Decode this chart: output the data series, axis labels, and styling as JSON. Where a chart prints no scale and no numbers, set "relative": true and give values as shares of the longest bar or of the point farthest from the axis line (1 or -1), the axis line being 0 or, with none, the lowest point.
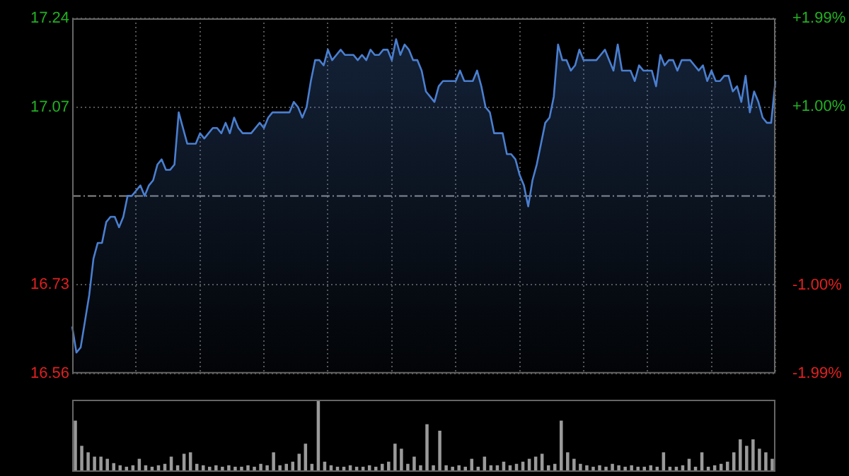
{
  "chart_data": [
    {
      "type": "area",
      "categories": [
        null,
        null,
        null,
        null,
        null,
        null,
        null,
        null,
        null,
        null,
        null,
        null,
        null,
        null,
        null,
        null,
        null,
        null,
        null,
        null,
        null,
        null,
        null,
        null,
        null,
        null,
        null,
        null,
        null,
        null,
        null,
        null,
        null,
        null,
        null,
        null,
        null,
        null,
        null,
        null,
        null,
        null,
        null,
        null,
        null,
        null,
        null,
        null,
        null,
        null,
        null,
        null,
        null,
        null,
        null,
        null,
        null,
        null,
        null,
        null,
        null,
        null,
        null,
        null,
        null,
        null,
        null,
        null,
        null,
        null,
        null,
        null,
        null,
        null,
        null,
        null,
        null,
        null,
        null,
        null,
        null,
        null,
        null,
        null,
        null,
        null,
        null,
        null,
        null,
        null,
        null,
        null,
        null,
        null,
        null,
        null,
        null,
        null,
        null,
        null,
        null,
        null,
        null,
        null,
        null,
        null,
        null,
        null,
        null,
        null,
        null,
        null,
        null,
        null,
        null,
        null,
        null,
        null,
        null,
        null,
        null,
        null,
        null,
        null,
        null,
        null,
        null,
        null,
        null,
        null,
        null,
        null,
        null,
        null,
        null,
        null,
        null,
        null,
        null,
        null,
        null,
        null,
        null,
        null,
        null,
        null,
        null,
        null,
        null,
        null,
        null,
        null,
        null,
        null,
        null,
        null,
        null,
        null,
        null,
        null,
        null,
        null,
        null,
        null,
        null,
        null
      ],
      "ylim": [
        16.56,
        17.24
      ],
      "yticks": [
        16.56,
        16.73,
        17.07,
        17.24
      ],
      "y2lim": [
        -1.99,
        1.99
      ],
      "y2ticks": [
        {
          "value": -1.99,
          "label": "-1.99%"
        },
        {
          "value": -1.0,
          "label": "-1.00%"
        },
        {
          "value": 1.0,
          "label": "+1.00%"
        },
        {
          "value": 1.99,
          "label": "+1.99%"
        }
      ],
      "grid": true,
      "legend": false,
      "marker": "none",
      "ref_lines": [
        {
          "axis": "y",
          "value": 16.9,
          "color": "#8a8a8a",
          "line_style": "dashed"
        }
      ],
      "series": [
        {
          "color": "#4a7fd0",
          "values": [
            16.65,
            16.6,
            16.61,
            16.66,
            16.71,
            16.78,
            16.81,
            16.81,
            16.85,
            16.86,
            16.86,
            16.84,
            16.86,
            16.9,
            16.9,
            16.91,
            16.92,
            16.9,
            16.92,
            16.93,
            16.96,
            16.97,
            16.95,
            16.95,
            16.96,
            17.06,
            17.03,
            17.0,
            17.0,
            17.0,
            17.02,
            17.01,
            17.02,
            17.03,
            17.03,
            17.02,
            17.04,
            17.02,
            17.05,
            17.03,
            17.02,
            17.02,
            17.02,
            17.03,
            17.04,
            17.03,
            17.05,
            17.06,
            17.06,
            17.06,
            17.06,
            17.06,
            17.08,
            17.07,
            17.05,
            17.07,
            17.12,
            17.16,
            17.16,
            17.15,
            17.18,
            17.16,
            17.17,
            17.18,
            17.17,
            17.17,
            17.17,
            17.16,
            17.17,
            17.16,
            17.18,
            17.17,
            17.17,
            17.18,
            17.18,
            17.16,
            17.2,
            17.17,
            17.19,
            17.18,
            17.16,
            17.16,
            17.14,
            17.1,
            17.09,
            17.08,
            17.11,
            17.12,
            17.12,
            17.12,
            17.12,
            17.14,
            17.12,
            17.12,
            17.12,
            17.14,
            17.11,
            17.07,
            17.06,
            17.02,
            17.02,
            17.02,
            16.98,
            16.98,
            16.97,
            16.94,
            16.92,
            16.88,
            16.93,
            16.96,
            17.0,
            17.04,
            17.05,
            17.09,
            17.19,
            17.16,
            17.16,
            17.14,
            17.15,
            17.18,
            17.16,
            17.16,
            17.16,
            17.16,
            17.17,
            17.18,
            17.16,
            17.14,
            17.19,
            17.14,
            17.14,
            17.14,
            17.12,
            17.15,
            17.14,
            17.14,
            17.14,
            17.11,
            17.17,
            17.15,
            17.16,
            17.16,
            17.14,
            17.16,
            17.16,
            17.16,
            17.15,
            17.14,
            17.15,
            17.12,
            17.14,
            17.12,
            17.12,
            17.13,
            17.13,
            17.1,
            17.11,
            17.08,
            17.13,
            17.06,
            17.1,
            17.08,
            17.05,
            17.04,
            17.04,
            17.12
          ]
        }
      ]
    },
    {
      "type": "bar",
      "relative": true,
      "legend": false,
      "categories": [
        null,
        null,
        null,
        null,
        null,
        null,
        null,
        null,
        null,
        null,
        null,
        null,
        null,
        null,
        null,
        null,
        null,
        null,
        null,
        null,
        null,
        null,
        null,
        null,
        null,
        null,
        null,
        null,
        null,
        null,
        null,
        null,
        null,
        null,
        null,
        null,
        null,
        null,
        null,
        null,
        null,
        null,
        null,
        null,
        null,
        null,
        null,
        null,
        null,
        null,
        null,
        null,
        null,
        null,
        null,
        null,
        null,
        null,
        null,
        null,
        null,
        null,
        null,
        null,
        null,
        null,
        null,
        null,
        null,
        null,
        null,
        null,
        null,
        null,
        null,
        null,
        null,
        null,
        null,
        null,
        null,
        null,
        null,
        null,
        null,
        null,
        null,
        null,
        null,
        null,
        null,
        null,
        null,
        null,
        null,
        null,
        null,
        null,
        null,
        null,
        null,
        null,
        null,
        null,
        null,
        null,
        null,
        null,
        null,
        null
      ],
      "color": "#9a9a9a",
      "values": [
        0.71,
        0.36,
        0.27,
        0.21,
        0.21,
        0.18,
        0.12,
        0.09,
        0.07,
        0.09,
        0.18,
        0.09,
        0.07,
        0.09,
        0.11,
        0.21,
        0.09,
        0.25,
        0.27,
        0.11,
        0.09,
        0.07,
        0.09,
        0.07,
        0.09,
        0.07,
        0.07,
        0.09,
        0.07,
        0.11,
        0.09,
        0.27,
        0.09,
        0.11,
        0.14,
        0.25,
        0.39,
        0.11,
        1,
        0.14,
        0.09,
        0.07,
        0.07,
        0.09,
        0.07,
        0.07,
        0.09,
        0.07,
        0.11,
        0.14,
        0.39,
        0.32,
        0.11,
        0.21,
        0.09,
        0.66,
        0.09,
        0.57,
        0.09,
        0.07,
        0.09,
        0.07,
        0.18,
        0.07,
        0.21,
        0.09,
        0.09,
        0.14,
        0.09,
        0.11,
        0.14,
        0.18,
        0.21,
        0.25,
        0.09,
        0.11,
        0.71,
        0.27,
        0.18,
        0.11,
        0.09,
        0.07,
        0.09,
        0.07,
        0.11,
        0.09,
        0.07,
        0.09,
        0.07,
        0.07,
        0.09,
        0.07,
        0.27,
        0.07,
        0.07,
        0.09,
        0.18,
        0.07,
        0.27,
        0.07,
        0.09,
        0.11,
        0.14,
        0.27,
        0.45,
        0.36,
        0.45,
        0.32,
        0.27,
        0.18
      ]
    }
  ]
}
